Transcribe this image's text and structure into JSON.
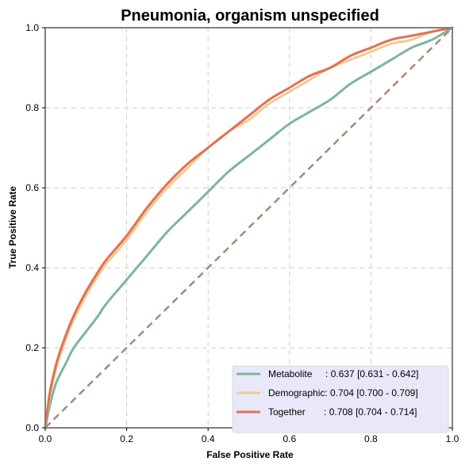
{
  "chart_data": {
    "type": "line",
    "title": "Pneumonia, organism unspecified",
    "xlabel": "False Positive Rate",
    "ylabel": "True Positive Rate",
    "xlim": [
      0,
      1
    ],
    "ylim": [
      0,
      1
    ],
    "xticks": [
      "0.0",
      "0.2",
      "0.4",
      "0.6",
      "0.8",
      "1.0"
    ],
    "yticks": [
      "0.0",
      "0.2",
      "0.4",
      "0.6",
      "0.8",
      "1.0"
    ],
    "grid": true,
    "legend_position": "lower-right",
    "series": [
      {
        "name": "Metabolite",
        "legend_label": "Metabolite     : 0.637 [0.631 - 0.642]",
        "color": "#7fb59a",
        "x": [
          0,
          0.01,
          0.02,
          0.03,
          0.05,
          0.07,
          0.1,
          0.13,
          0.15,
          0.2,
          0.25,
          0.3,
          0.35,
          0.4,
          0.45,
          0.5,
          0.55,
          0.6,
          0.65,
          0.7,
          0.75,
          0.8,
          0.85,
          0.9,
          0.95,
          1.0
        ],
        "y": [
          0,
          0.05,
          0.09,
          0.12,
          0.16,
          0.2,
          0.24,
          0.28,
          0.31,
          0.37,
          0.43,
          0.49,
          0.54,
          0.59,
          0.64,
          0.68,
          0.72,
          0.76,
          0.79,
          0.82,
          0.86,
          0.89,
          0.92,
          0.95,
          0.97,
          1.0
        ]
      },
      {
        "name": "Demographic",
        "legend_label": "Demographic: 0.704 [0.700 - 0.709]",
        "color": "#f5c98c",
        "x": [
          0,
          0.01,
          0.02,
          0.03,
          0.05,
          0.07,
          0.1,
          0.13,
          0.15,
          0.2,
          0.25,
          0.3,
          0.35,
          0.4,
          0.45,
          0.5,
          0.55,
          0.6,
          0.65,
          0.7,
          0.75,
          0.8,
          0.85,
          0.9,
          0.95,
          1.0
        ],
        "y": [
          0,
          0.07,
          0.12,
          0.16,
          0.22,
          0.27,
          0.33,
          0.38,
          0.41,
          0.47,
          0.54,
          0.6,
          0.65,
          0.7,
          0.74,
          0.77,
          0.81,
          0.84,
          0.87,
          0.9,
          0.92,
          0.94,
          0.96,
          0.97,
          0.99,
          1.0
        ]
      },
      {
        "name": "Together",
        "legend_label": "Together       : 0.708 [0.704 - 0.714]",
        "color": "#e07058",
        "x": [
          0,
          0.01,
          0.02,
          0.03,
          0.05,
          0.07,
          0.1,
          0.13,
          0.15,
          0.2,
          0.25,
          0.3,
          0.35,
          0.4,
          0.45,
          0.5,
          0.55,
          0.6,
          0.65,
          0.7,
          0.75,
          0.8,
          0.85,
          0.9,
          0.95,
          1.0
        ],
        "y": [
          0,
          0.08,
          0.13,
          0.17,
          0.23,
          0.28,
          0.34,
          0.39,
          0.42,
          0.48,
          0.55,
          0.61,
          0.66,
          0.7,
          0.74,
          0.78,
          0.82,
          0.85,
          0.88,
          0.9,
          0.93,
          0.95,
          0.97,
          0.98,
          0.99,
          1.0
        ]
      }
    ],
    "reference_line": {
      "x": [
        0,
        1
      ],
      "y": [
        0,
        1
      ],
      "color": "#a88878",
      "style": "dashed"
    },
    "legend_background": "#e8e8f8"
  }
}
